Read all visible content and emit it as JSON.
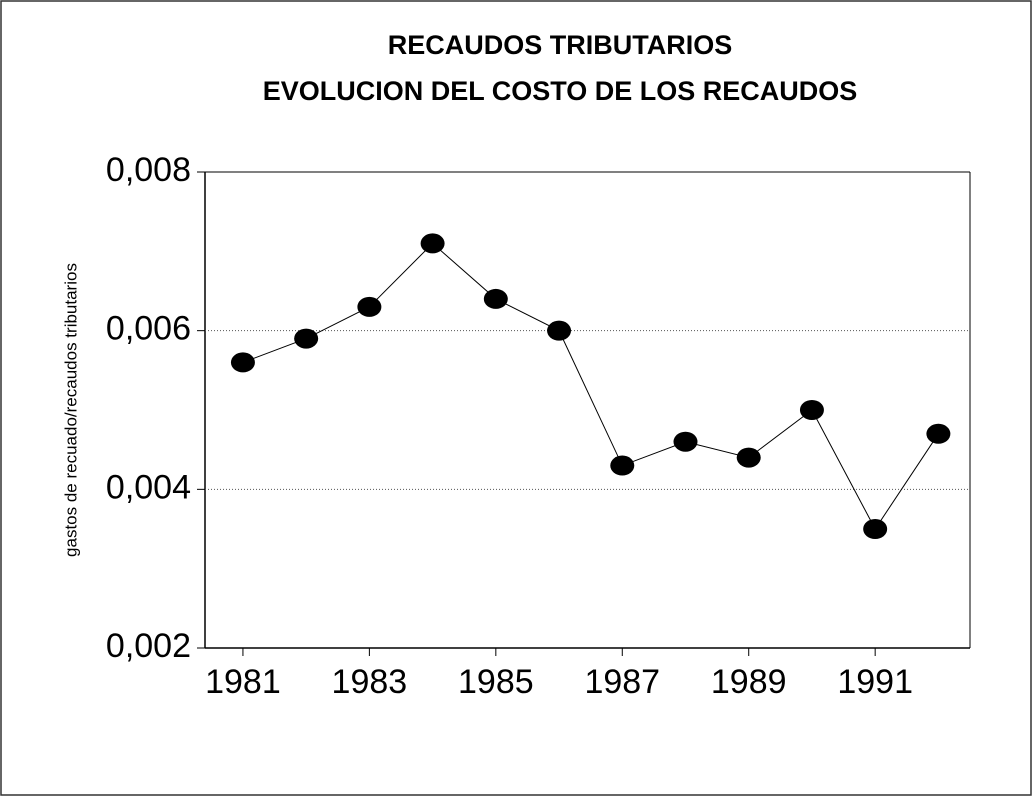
{
  "chart_data": {
    "type": "line",
    "title": "RECAUDOS TRIBUTARIOS",
    "subtitle": "EVOLUCION DEL COSTO DE LOS RECAUDOS",
    "y_label": "gastos de recuado/recaudos tributarios",
    "x": [
      1981,
      1982,
      1983,
      1984,
      1985,
      1986,
      1987,
      1988,
      1989,
      1990,
      1991,
      1992
    ],
    "values": [
      0.0056,
      0.0059,
      0.0063,
      0.0071,
      0.0064,
      0.006,
      0.0043,
      0.0046,
      0.0044,
      0.005,
      0.0035,
      0.0047
    ],
    "color": "#000000",
    "xlim": [
      1980.4,
      1992.5
    ],
    "xticks": [
      1981,
      1983,
      1985,
      1987,
      1989,
      1991
    ],
    "ylim": [
      0.002,
      0.008
    ],
    "yticks": [
      {
        "value": 0.002,
        "label": "0,002"
      },
      {
        "value": 0.004,
        "label": "0,004"
      },
      {
        "value": 0.006,
        "label": "0,006"
      },
      {
        "value": 0.008,
        "label": "0,008"
      }
    ],
    "grid": true
  }
}
